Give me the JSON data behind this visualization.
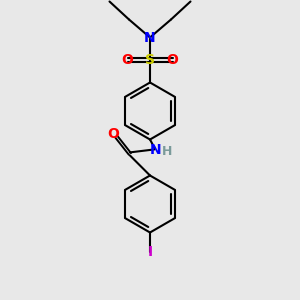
{
  "bg_color": "#e8e8e8",
  "bond_color": "#000000",
  "bond_lw": 1.5,
  "atom_colors": {
    "N": "#0000ff",
    "S": "#cccc00",
    "O": "#ff0000",
    "I": "#cc00cc",
    "H": "#7a9a9a",
    "C": "#000000"
  },
  "font_size": 9,
  "fig_size": [
    3.0,
    3.0
  ],
  "dpi": 100
}
